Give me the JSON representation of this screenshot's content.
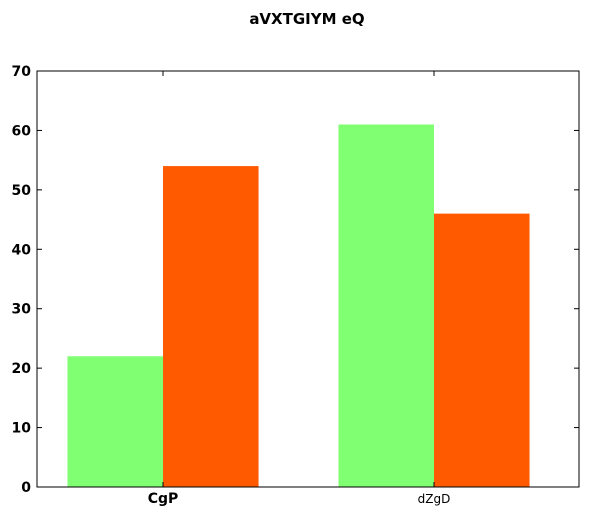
{
  "chart_data": {
    "type": "bar",
    "title": "aVXTGIYM eQ",
    "xlabel": "",
    "ylabel": "",
    "categories": [
      "CgP",
      "dZgD"
    ],
    "category_label_bold": [
      true,
      false
    ],
    "series": [
      {
        "color": "#80ff72",
        "values": [
          22,
          61
        ]
      },
      {
        "color": "#ff5a00",
        "values": [
          54,
          46
        ]
      }
    ],
    "ylim": [
      0,
      70
    ],
    "yticks": [
      0,
      10,
      20,
      30,
      40,
      50,
      60,
      70
    ],
    "grid": false,
    "legend": "none"
  }
}
